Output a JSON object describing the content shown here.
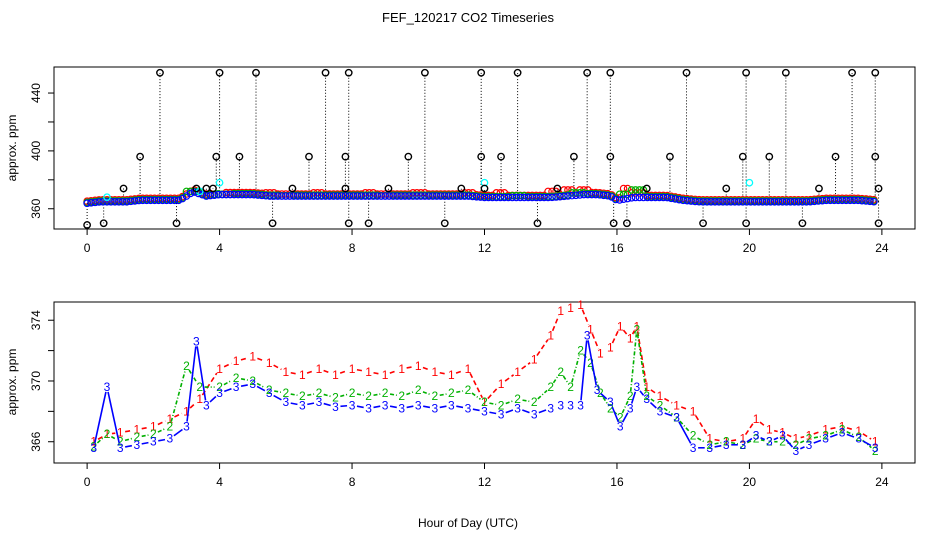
{
  "title": "FEF_120217  CO2 Timeseries",
  "xlabel": "Hour of Day (UTC)",
  "colors": {
    "black": "#000000",
    "red": "#ff0000",
    "green": "#00b000",
    "blue": "#0000ff",
    "cyan": "#00ffff"
  },
  "chart_data": [
    {
      "type": "scatter",
      "ylabel": "approx. ppm",
      "xlim": [
        -1,
        25
      ],
      "ylim": [
        346,
        458
      ],
      "xticks": [
        "0",
        "4",
        "8",
        "12",
        "16",
        "20",
        "24"
      ],
      "yticks": [
        "360",
        "400",
        "440"
      ],
      "baseline": {
        "x": [
          0,
          0.4,
          0.8,
          1.2,
          1.6,
          2.0,
          2.4,
          2.8,
          3.2,
          3.6,
          4.0,
          4.5,
          5.0,
          5.5,
          6.0,
          6.5,
          7.0,
          7.5,
          8.0,
          8.5,
          9.0,
          9.5,
          10.0,
          10.5,
          11.0,
          11.5,
          12.0,
          12.5,
          13.0,
          13.5,
          14.0,
          14.5,
          15.0,
          15.4,
          15.8,
          16.0,
          16.5,
          17.0,
          17.5,
          18.0,
          18.5,
          19.0,
          19.5,
          19.9,
          20.3,
          20.8,
          21.3,
          21.8,
          22.3,
          22.8,
          23.3,
          23.8
        ],
        "values": [
          364,
          365,
          365,
          365,
          366,
          366,
          366,
          366,
          372,
          369,
          370,
          370,
          370,
          369,
          369,
          369,
          369,
          369,
          369,
          369,
          369,
          369,
          369,
          369,
          369,
          369,
          368,
          368,
          368,
          368,
          368,
          369,
          370,
          370,
          369,
          366,
          368,
          368,
          368,
          366,
          365,
          365,
          365,
          365,
          365,
          365,
          365,
          365,
          366,
          366,
          366,
          365
        ]
      },
      "series": [
        {
          "color": "red",
          "x": [
            4.0,
            5.5,
            7.0,
            8.5,
            10.0,
            11.5,
            12.5,
            14.0,
            14.5,
            15.0,
            16.3,
            16.6
          ],
          "y": [
            370,
            371,
            371,
            371,
            371,
            371,
            371,
            372,
            373,
            373,
            374,
            371
          ]
        },
        {
          "color": "green",
          "x": [
            3.2,
            4.2,
            6.0,
            9.0,
            13.0,
            14.8,
            16.2,
            16.6
          ],
          "y": [
            372,
            370,
            369,
            369,
            369,
            371,
            370,
            373
          ]
        },
        {
          "color": "cyan",
          "x": [
            0.6,
            3.4,
            4.0,
            12.0,
            20.0
          ],
          "y": [
            368,
            372,
            378,
            378,
            378
          ]
        },
        {
          "color": "black",
          "x": [
            0.0,
            0.5,
            1.1,
            1.6,
            2.2,
            2.7,
            3.3,
            3.6,
            3.8,
            3.9,
            4.0,
            4.6,
            5.1,
            5.6,
            6.2,
            6.7,
            7.2,
            7.8,
            7.8,
            7.9,
            7.9,
            8.5,
            9.1,
            9.7,
            10.2,
            10.8,
            11.3,
            11.9,
            11.9,
            12.0,
            12.5,
            13.0,
            13.6,
            14.2,
            14.7,
            15.1,
            15.8,
            15.8,
            15.9,
            16.3,
            16.9,
            17.6,
            18.1,
            18.6,
            19.3,
            19.8,
            19.9,
            19.9,
            20.6,
            21.1,
            21.6,
            22.1,
            22.6,
            23.1,
            23.8,
            23.8,
            23.9,
            23.9
          ],
          "y": [
            345,
            350,
            374,
            396,
            454,
            350,
            374,
            374,
            374,
            396,
            454,
            396,
            454,
            350,
            374,
            396,
            454,
            374,
            396,
            454,
            350,
            350,
            374,
            396,
            454,
            350,
            374,
            396,
            454,
            374,
            396,
            454,
            350,
            374,
            396,
            454,
            396,
            454,
            350,
            350,
            374,
            396,
            454,
            350,
            374,
            396,
            454,
            350,
            396,
            454,
            350,
            374,
            396,
            454,
            396,
            454,
            374,
            350
          ]
        }
      ]
    },
    {
      "type": "line",
      "ylabel": "approx. ppm",
      "xlim": [
        -1,
        25
      ],
      "ylim": [
        364.6,
        375.2
      ],
      "xticks": [
        "0",
        "4",
        "8",
        "12",
        "16",
        "20",
        "24"
      ],
      "yticks": [
        "366",
        "370",
        "374"
      ],
      "series": [
        {
          "marker": "1",
          "color": "red",
          "x": [
            0.2,
            0.6,
            1.0,
            1.5,
            2.0,
            2.5,
            3.0,
            3.4,
            4.0,
            4.5,
            5.0,
            5.5,
            6.0,
            6.5,
            7.0,
            7.5,
            8.0,
            8.5,
            9.0,
            9.5,
            10.0,
            10.5,
            11.0,
            11.5,
            12.0,
            12.5,
            13.0,
            13.5,
            14.0,
            14.3,
            14.6,
            14.9,
            15.2,
            15.5,
            15.8,
            16.1,
            16.4,
            16.6,
            16.9,
            17.3,
            17.8,
            18.3,
            18.8,
            19.3,
            19.8,
            20.2,
            20.6,
            21.0,
            21.4,
            21.8,
            22.3,
            22.8,
            23.3,
            23.8
          ],
          "y": [
            366.0,
            366.5,
            366.6,
            366.8,
            367.0,
            367.5,
            368.0,
            368.8,
            370.8,
            371.3,
            371.6,
            371.2,
            370.6,
            370.4,
            370.8,
            370.4,
            370.8,
            370.6,
            370.4,
            370.8,
            371.0,
            370.6,
            370.4,
            370.8,
            368.6,
            369.8,
            370.6,
            371.4,
            373.0,
            374.6,
            374.8,
            375.0,
            373.4,
            371.8,
            372.2,
            373.6,
            372.8,
            373.6,
            369.6,
            369.0,
            368.4,
            368.0,
            366.2,
            366.0,
            366.2,
            367.5,
            366.8,
            366.6,
            366.2,
            366.4,
            366.8,
            367.0,
            366.7,
            366.0
          ]
        },
        {
          "marker": "2",
          "color": "green",
          "x": [
            0.2,
            0.6,
            1.0,
            1.5,
            2.0,
            2.5,
            3.0,
            3.4,
            4.0,
            4.5,
            5.0,
            5.5,
            6.0,
            6.5,
            7.0,
            7.5,
            8.0,
            8.5,
            9.0,
            9.5,
            10.0,
            10.5,
            11.0,
            11.5,
            12.0,
            12.5,
            13.0,
            13.5,
            14.0,
            14.3,
            14.6,
            14.9,
            15.2,
            15.5,
            15.8,
            16.1,
            16.4,
            16.6,
            16.9,
            17.3,
            17.8,
            18.3,
            18.8,
            19.3,
            19.8,
            20.2,
            20.6,
            21.0,
            21.4,
            21.8,
            22.3,
            22.8,
            23.3,
            23.8
          ],
          "y": [
            365.7,
            366.5,
            366.0,
            366.3,
            366.5,
            367.0,
            371.0,
            369.6,
            369.6,
            370.2,
            370.0,
            369.4,
            369.2,
            369.0,
            369.2,
            368.9,
            369.2,
            369.0,
            369.2,
            369.0,
            369.4,
            369.0,
            369.2,
            369.4,
            368.6,
            368.4,
            368.8,
            368.6,
            369.6,
            370.6,
            369.6,
            372.0,
            371.2,
            369.2,
            368.2,
            367.6,
            369.0,
            373.4,
            369.0,
            368.4,
            367.6,
            366.4,
            365.8,
            366.0,
            365.8,
            366.2,
            366.0,
            366.0,
            365.8,
            366.2,
            366.4,
            366.8,
            366.3,
            365.4
          ]
        },
        {
          "marker": "3",
          "color": "blue",
          "x": [
            0.2,
            0.6,
            1.0,
            1.5,
            2.0,
            2.5,
            3.0,
            3.3,
            3.6,
            4.0,
            4.5,
            5.0,
            5.5,
            6.0,
            6.5,
            7.0,
            7.5,
            8.0,
            8.5,
            9.0,
            9.5,
            10.0,
            10.5,
            11.0,
            11.5,
            12.0,
            12.5,
            13.0,
            13.5,
            14.0,
            14.3,
            14.6,
            14.9,
            15.1,
            15.4,
            15.8,
            16.1,
            16.4,
            16.6,
            16.9,
            17.3,
            17.8,
            18.3,
            18.8,
            19.3,
            19.8,
            20.2,
            20.6,
            21.0,
            21.4,
            21.8,
            22.3,
            22.8,
            23.3,
            23.8
          ],
          "y": [
            365.6,
            369.6,
            365.6,
            365.8,
            366.0,
            366.2,
            367.0,
            372.6,
            368.4,
            369.2,
            369.6,
            369.8,
            369.2,
            368.6,
            368.4,
            368.6,
            368.3,
            368.4,
            368.2,
            368.4,
            368.2,
            368.4,
            368.2,
            368.4,
            368.2,
            368.0,
            367.8,
            368.2,
            367.8,
            368.2,
            368.4,
            368.4,
            368.4,
            373.0,
            369.4,
            368.6,
            367.0,
            368.2,
            369.6,
            368.8,
            368.0,
            367.6,
            365.6,
            365.6,
            365.8,
            365.8,
            366.4,
            366.0,
            366.4,
            365.4,
            365.8,
            366.2,
            366.6,
            366.2,
            365.6
          ]
        }
      ]
    }
  ]
}
